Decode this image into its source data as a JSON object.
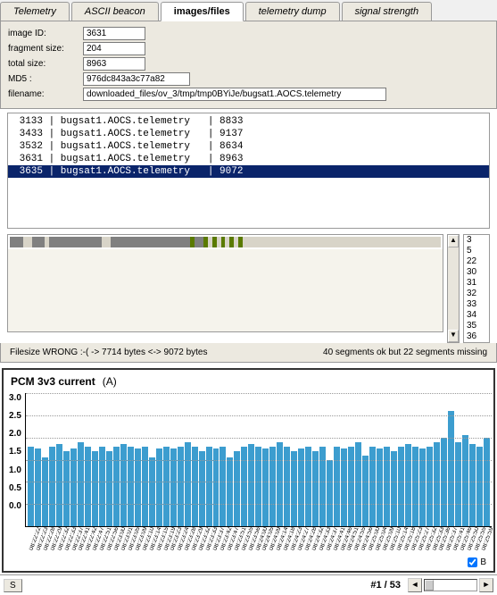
{
  "tabs": [
    {
      "label": "Telemetry",
      "active": false
    },
    {
      "label": "ASCII beacon",
      "active": false
    },
    {
      "label": "images/files",
      "active": true
    },
    {
      "label": "telemetry dump",
      "active": false
    },
    {
      "label": "signal strength",
      "active": false
    }
  ],
  "form": {
    "image_id": {
      "label": "image ID:",
      "value": "3631"
    },
    "fragment_size": {
      "label": "fragment size:",
      "value": "204"
    },
    "total_size": {
      "label": "total size:",
      "value": "8963"
    },
    "md5": {
      "label": "MD5 :",
      "value": "976dc843a3c77a82"
    },
    "filename": {
      "label": "filename:",
      "value": "downloaded_files/ov_3/tmp/tmp0BYiJe/bugsat1.AOCS.telemetry"
    }
  },
  "file_rows": [
    {
      "id": "3133",
      "name": "bugsat1.AOCS.telemetry",
      "size": "8833",
      "selected": false
    },
    {
      "id": "3433",
      "name": "bugsat1.AOCS.telemetry",
      "size": "9137",
      "selected": false
    },
    {
      "id": "3532",
      "name": "bugsat1.AOCS.telemetry",
      "size": "8634",
      "selected": false
    },
    {
      "id": "3631",
      "name": "bugsat1.AOCS.telemetry",
      "size": "8963",
      "selected": false
    },
    {
      "id": "3635",
      "name": "bugsat1.AOCS.telemetry",
      "size": "9072",
      "selected": true
    }
  ],
  "fragments": {
    "colors": {
      "ok": "#808080",
      "gap": "#d8d4c8",
      "marker": "#5a7a00"
    },
    "segments": [
      {
        "w": 3,
        "c": "ok"
      },
      {
        "w": 2,
        "c": "gap"
      },
      {
        "w": 3,
        "c": "ok"
      },
      {
        "w": 1,
        "c": "gap"
      },
      {
        "w": 12,
        "c": "ok"
      },
      {
        "w": 2,
        "c": "gap"
      },
      {
        "w": 18,
        "c": "ok"
      },
      {
        "w": 1,
        "c": "marker"
      },
      {
        "w": 2,
        "c": "ok"
      },
      {
        "w": 1,
        "c": "marker"
      },
      {
        "w": 1,
        "c": "gap"
      },
      {
        "w": 1,
        "c": "marker"
      },
      {
        "w": 1,
        "c": "gap"
      },
      {
        "w": 1,
        "c": "marker"
      },
      {
        "w": 1,
        "c": "gap"
      },
      {
        "w": 1,
        "c": "marker"
      },
      {
        "w": 1,
        "c": "gap"
      },
      {
        "w": 1,
        "c": "marker"
      },
      {
        "w": 45,
        "c": "gap"
      }
    ],
    "side_numbers": [
      "3",
      "5",
      "22",
      "30",
      "31",
      "32",
      "33",
      "34",
      "35",
      "36"
    ]
  },
  "status": {
    "left": "Filesize WRONG :-(  -> 7714 bytes <-> 9072 bytes",
    "right": "40 segments ok but 22 segments missing"
  },
  "chart": {
    "title": "PCM 3v3 current",
    "unit": "(A)",
    "bar_color": "#3c9dcf",
    "y_ticks": [
      "3.0",
      "2.5",
      "2.0",
      "1.5",
      "1.0",
      "0.5",
      "0.0"
    ],
    "y_max": 3.0,
    "values": [
      1.8,
      1.75,
      1.55,
      1.8,
      1.85,
      1.7,
      1.75,
      1.9,
      1.8,
      1.7,
      1.8,
      1.7,
      1.8,
      1.85,
      1.8,
      1.75,
      1.8,
      1.55,
      1.75,
      1.8,
      1.75,
      1.8,
      1.9,
      1.8,
      1.7,
      1.8,
      1.75,
      1.8,
      1.55,
      1.7,
      1.8,
      1.85,
      1.8,
      1.75,
      1.8,
      1.9,
      1.8,
      1.7,
      1.75,
      1.8,
      1.7,
      1.8,
      1.5,
      1.8,
      1.75,
      1.8,
      1.9,
      1.6,
      1.8,
      1.75,
      1.8,
      1.7,
      1.8,
      1.85,
      1.8,
      1.75,
      1.8,
      1.9,
      2.0,
      2.6,
      1.9,
      2.05,
      1.85,
      1.8,
      2.0
    ],
    "x_labels": [
      "08:22:22",
      "08:22:23",
      "08:22:28",
      "08:22:29",
      "08:22:32",
      "08:22:33",
      "08:22:37",
      "08:22:41",
      "08:22:42",
      "08:22:47",
      "08:22:51",
      "08:22:56",
      "08:23:00",
      "08:23:01",
      "08:23:05",
      "08:23:09",
      "08:23:10",
      "08:23:14",
      "08:23:15",
      "08:23:19",
      "08:23:23",
      "08:23:24",
      "08:23:28",
      "08:23:29",
      "08:23:32",
      "08:23:33",
      "08:23:37",
      "08:23:42",
      "08:23:47",
      "08:23:51",
      "08:23:55",
      "08:23:56",
      "08:24:00",
      "08:24:05",
      "08:24:09",
      "08:24:14",
      "08:24:18",
      "08:24:23",
      "08:24:27",
      "08:24:28",
      "08:24:32",
      "08:24:33",
      "08:24:37",
      "08:24:41",
      "08:24:46",
      "08:24:51",
      "08:24:55",
      "08:24:56",
      "08:25:00",
      "08:25:04",
      "08:25:09",
      "08:25:10",
      "08:25:14",
      "08:25:18",
      "08:25:23",
      "08:25:27",
      "08:25:32",
      "08:25:33",
      "08:25:36",
      "08:25:37",
      "08:25:41",
      "08:25:46",
      "08:25:50",
      "08:25:55",
      "08:25:59"
    ],
    "foot_label": "B"
  },
  "footer": {
    "button": "S",
    "pager": "#1 / 53"
  }
}
